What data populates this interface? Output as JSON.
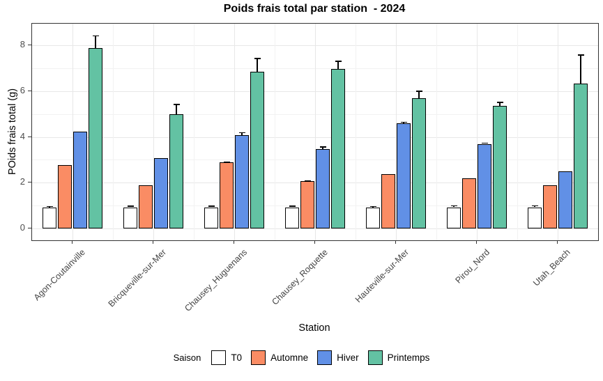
{
  "chart_data": {
    "type": "bar",
    "title": "Poids frais total par station  - 2024",
    "xlabel": "Station",
    "ylabel": "POids frais total (g)",
    "legend_title": "Saison",
    "legend_position": "bottom",
    "grid": true,
    "ylim": [
      -0.45,
      8.95
    ],
    "yticks": [
      0,
      2,
      4,
      6,
      8
    ],
    "categories": [
      "Agon-Coutainville",
      "Bricqueville-sur-Mer",
      "Chausey_Huguenans",
      "Chausey_Roquette",
      "Hauteville-sur-Mer",
      "Pirou_Nord",
      "Utah_Beach"
    ],
    "series": [
      {
        "name": "T0",
        "color": "#ffffff",
        "values": [
          0.93,
          0.93,
          0.93,
          0.93,
          0.93,
          0.93,
          0.93
        ],
        "errors": [
          0.06,
          0.07,
          0.07,
          0.07,
          0.06,
          0.08,
          0.08
        ]
      },
      {
        "name": "Automne",
        "color": "#fa8c64",
        "values": [
          2.77,
          1.88,
          2.89,
          2.07,
          2.38,
          2.19,
          1.88
        ],
        "errors": [
          0,
          0,
          0.05,
          0.04,
          0,
          0,
          0
        ]
      },
      {
        "name": "Hiver",
        "color": "#6190e6",
        "values": [
          4.22,
          3.08,
          4.08,
          3.46,
          4.6,
          3.7,
          2.49
        ],
        "errors": [
          0,
          0,
          0.13,
          0.12,
          0.07,
          0.05,
          0
        ]
      },
      {
        "name": "Printemps",
        "color": "#63c2a3",
        "values": [
          7.9,
          5.0,
          6.85,
          6.98,
          5.7,
          5.35,
          6.33
        ],
        "errors": [
          0.55,
          0.45,
          0.6,
          0.35,
          0.32,
          0.18,
          1.28
        ]
      }
    ]
  }
}
